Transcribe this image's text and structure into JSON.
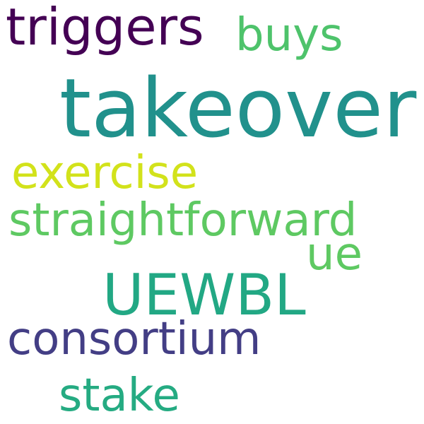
{
  "words": [
    {
      "text": "triggers",
      "color": "#440154"
    },
    {
      "text": "buys",
      "color": "#4ec36b"
    },
    {
      "text": "takeover",
      "color": "#21918c"
    },
    {
      "text": "exercise",
      "color": "#d2e21b"
    },
    {
      "text": "straightforward",
      "color": "#5ec962"
    },
    {
      "text": "ue",
      "color": "#5ec962"
    },
    {
      "text": "UEWBL",
      "color": "#22a884"
    },
    {
      "text": "consortium",
      "color": "#433e85"
    },
    {
      "text": "stake",
      "color": "#25ab82"
    }
  ]
}
